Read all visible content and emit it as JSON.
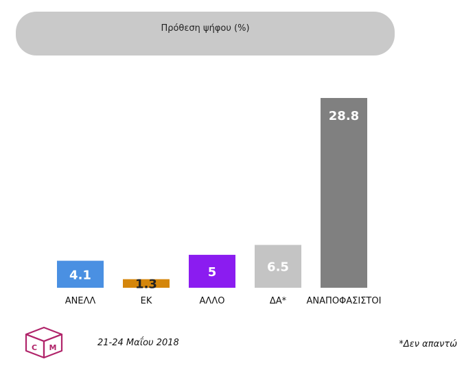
{
  "chart_data": {
    "type": "bar",
    "title": "Πρόθεση ψήφου (%)",
    "categories": [
      "ΑΝΕΛΛ",
      "ΕΚ",
      "ΑΛΛΟ",
      "ΔΑ*",
      "ΑΝΑΠΟΦΑΣΙΣΤΟΙ"
    ],
    "values": [
      4.1,
      1.3,
      5,
      6.5,
      28.8
    ],
    "value_labels": [
      "4.1",
      "1.3",
      "5",
      "6.5",
      "28.8"
    ],
    "colors": [
      "#4a90e2",
      "#d4860b",
      "#8b1cf0",
      "#c4c4c4",
      "#808080"
    ],
    "ylim": [
      0,
      28.8
    ],
    "grid": false,
    "legend": "none"
  },
  "footer": {
    "date": "21-24 Μαΐου 2018",
    "note": "*Δεν απαντώ"
  },
  "logo": {
    "left_letter": "C",
    "right_letter": "M",
    "color": "#b0246a"
  }
}
